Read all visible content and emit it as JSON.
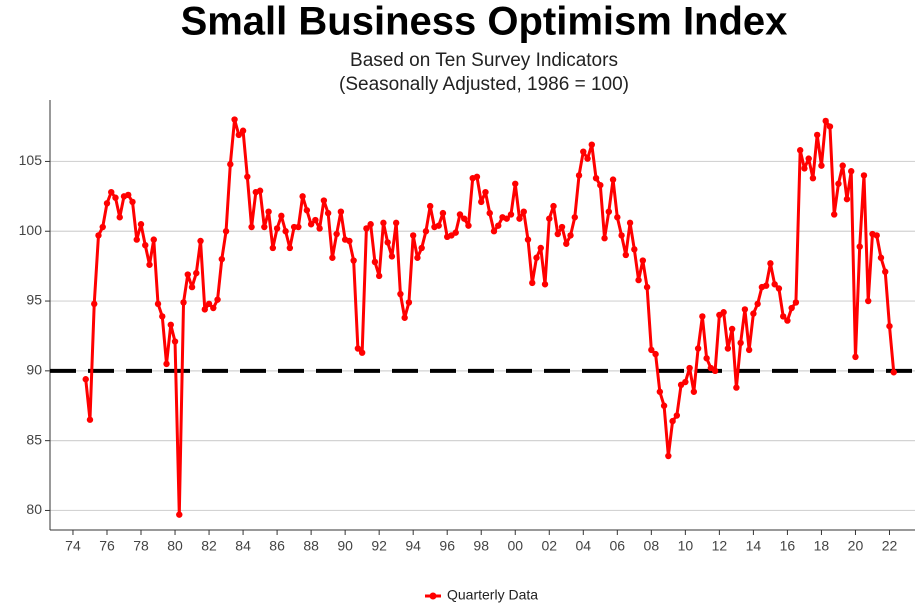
{
  "chart_data": {
    "type": "line",
    "title": "Small Business Optimism Index",
    "subtitle": [
      "Based on Ten Survey Indicators",
      "(Seasonally Adjusted, 1986 = 100)"
    ],
    "x": [
      1974.75,
      1975,
      1975.25,
      1975.5,
      1975.75,
      1976,
      1976.25,
      1976.5,
      1976.75,
      1977,
      1977.25,
      1977.5,
      1977.75,
      1978,
      1978.25,
      1978.5,
      1978.75,
      1979,
      1979.25,
      1979.5,
      1979.75,
      1980,
      1980.25,
      1980.5,
      1980.75,
      1981,
      1981.25,
      1981.5,
      1981.75,
      1982,
      1982.25,
      1982.5,
      1982.75,
      1983,
      1983.25,
      1983.5,
      1983.75,
      1984,
      1984.25,
      1984.5,
      1984.75,
      1985,
      1985.25,
      1985.5,
      1985.75,
      1986,
      1986.25,
      1986.5,
      1986.75,
      1987,
      1987.25,
      1987.5,
      1987.75,
      1988,
      1988.25,
      1988.5,
      1988.75,
      1989,
      1989.25,
      1989.5,
      1989.75,
      1990,
      1990.25,
      1990.5,
      1990.75,
      1991,
      1991.25,
      1991.5,
      1991.75,
      1992,
      1992.25,
      1992.5,
      1992.75,
      1993,
      1993.25,
      1993.5,
      1993.75,
      1994,
      1994.25,
      1994.5,
      1994.75,
      1995,
      1995.25,
      1995.5,
      1995.75,
      1996,
      1996.25,
      1996.5,
      1996.75,
      1997,
      1997.25,
      1997.5,
      1997.75,
      1998,
      1998.25,
      1998.5,
      1998.75,
      1999,
      1999.25,
      1999.5,
      1999.75,
      2000,
      2000.25,
      2000.5,
      2000.75,
      2001,
      2001.25,
      2001.5,
      2001.75,
      2002,
      2002.25,
      2002.5,
      2002.75,
      2003,
      2003.25,
      2003.5,
      2003.75,
      2004,
      2004.25,
      2004.5,
      2004.75,
      2005,
      2005.25,
      2005.5,
      2005.75,
      2006,
      2006.25,
      2006.5,
      2006.75,
      2007,
      2007.25,
      2007.5,
      2007.75,
      2008,
      2008.25,
      2008.5,
      2008.75,
      2009,
      2009.25,
      2009.5,
      2009.75,
      2010,
      2010.25,
      2010.5,
      2010.75,
      2011,
      2011.25,
      2011.5,
      2011.75,
      2012,
      2012.25,
      2012.5,
      2012.75,
      2013,
      2013.25,
      2013.5,
      2013.75,
      2014,
      2014.25,
      2014.5,
      2014.75,
      2015,
      2015.25,
      2015.5,
      2015.75,
      2016,
      2016.25,
      2016.5,
      2016.75,
      2017,
      2017.25,
      2017.5,
      2017.75,
      2018,
      2018.25,
      2018.5,
      2018.75,
      2019,
      2019.25,
      2019.5,
      2019.75,
      2020,
      2020.25,
      2020.5,
      2020.75,
      2021,
      2021.25,
      2021.5,
      2021.75,
      2022,
      2022.25
    ],
    "series": [
      {
        "name": "Quarterly Data",
        "color": "#ff0000",
        "values": [
          89.4,
          86.5,
          94.8,
          99.7,
          100.3,
          102.0,
          102.8,
          102.4,
          101.0,
          102.5,
          102.6,
          102.1,
          99.4,
          100.5,
          99.0,
          97.6,
          99.4,
          94.8,
          93.9,
          90.5,
          93.3,
          92.1,
          79.7,
          94.9,
          96.9,
          96.0,
          97.0,
          99.3,
          94.4,
          94.8,
          94.5,
          95.1,
          98.0,
          100.0,
          104.8,
          108.0,
          106.9,
          107.2,
          103.9,
          100.3,
          102.8,
          102.9,
          100.3,
          101.4,
          98.8,
          100.2,
          101.1,
          100.0,
          98.8,
          100.3,
          100.3,
          102.5,
          101.5,
          100.5,
          100.8,
          100.2,
          102.2,
          101.3,
          98.1,
          99.8,
          101.4,
          99.4,
          99.3,
          97.9,
          91.6,
          91.3,
          100.2,
          100.5,
          97.8,
          96.8,
          100.6,
          99.2,
          98.2,
          100.6,
          95.5,
          93.8,
          94.9,
          99.7,
          98.1,
          98.8,
          100.0,
          101.8,
          100.3,
          100.4,
          101.3,
          99.6,
          99.7,
          99.9,
          101.2,
          100.9,
          100.4,
          103.8,
          103.9,
          102.1,
          102.8,
          101.3,
          100.0,
          100.4,
          101.0,
          100.9,
          101.2,
          103.4,
          100.9,
          101.4,
          99.4,
          96.3,
          98.1,
          98.8,
          96.2,
          100.9,
          101.8,
          99.8,
          100.3,
          99.1,
          99.7,
          101.0,
          104.0,
          105.7,
          105.2,
          106.2,
          103.8,
          103.3,
          99.5,
          101.4,
          103.7,
          101.0,
          99.7,
          98.3,
          100.6,
          98.7,
          96.5,
          97.9,
          96.0,
          91.5,
          91.2,
          88.5,
          87.5,
          83.9,
          86.4,
          86.8,
          89.0,
          89.2,
          90.2,
          88.5,
          91.6,
          93.9,
          90.9,
          90.2,
          90.0,
          94.0,
          94.2,
          91.6,
          93.0,
          88.8,
          92.0,
          94.4,
          91.5,
          94.1,
          94.8,
          96.0,
          96.1,
          97.7,
          96.2,
          95.9,
          93.9,
          93.6,
          94.5,
          94.9,
          105.8,
          104.5,
          105.2,
          103.8,
          106.9,
          104.7,
          107.9,
          107.5,
          101.2,
          103.4,
          104.7,
          102.3,
          104.3,
          91.0,
          98.9,
          104.0,
          95.0,
          99.8,
          99.7,
          98.1,
          97.1,
          93.2,
          89.9
        ]
      }
    ],
    "reference_line": 90,
    "xlim": [
      1972.65,
      2023.5
    ],
    "xticks": [
      {
        "value": 1974,
        "label": "74"
      },
      {
        "value": 1976,
        "label": "76"
      },
      {
        "value": 1978,
        "label": "78"
      },
      {
        "value": 1980,
        "label": "80"
      },
      {
        "value": 1982,
        "label": "82"
      },
      {
        "value": 1984,
        "label": "84"
      },
      {
        "value": 1986,
        "label": "86"
      },
      {
        "value": 1988,
        "label": "88"
      },
      {
        "value": 1990,
        "label": "90"
      },
      {
        "value": 1992,
        "label": "92"
      },
      {
        "value": 1994,
        "label": "94"
      },
      {
        "value": 1996,
        "label": "96"
      },
      {
        "value": 1998,
        "label": "98"
      },
      {
        "value": 2000,
        "label": "00"
      },
      {
        "value": 2002,
        "label": "02"
      },
      {
        "value": 2004,
        "label": "04"
      },
      {
        "value": 2006,
        "label": "06"
      },
      {
        "value": 2008,
        "label": "08"
      },
      {
        "value": 2010,
        "label": "10"
      },
      {
        "value": 2012,
        "label": "12"
      },
      {
        "value": 2014,
        "label": "14"
      },
      {
        "value": 2016,
        "label": "16"
      },
      {
        "value": 2018,
        "label": "18"
      },
      {
        "value": 2020,
        "label": "20"
      },
      {
        "value": 2022,
        "label": "22"
      }
    ],
    "ylim": [
      78.6,
      109.4
    ],
    "yticks": [
      80,
      85,
      90,
      95,
      100,
      105
    ],
    "grid": true,
    "legend": "bottom"
  }
}
